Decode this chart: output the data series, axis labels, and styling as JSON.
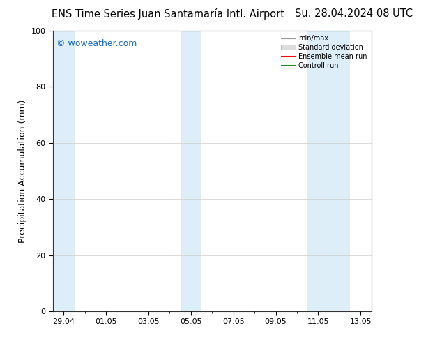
{
  "title_left": "ENS Time Series Juan Santamaría Intl. Airport",
  "title_right": "Su. 28.04.2024 08 UTC",
  "ylabel": "Precipitation Accumulation (mm)",
  "watermark": "© woweather.com",
  "ylim": [
    0,
    100
  ],
  "yticks": [
    0,
    20,
    40,
    60,
    80,
    100
  ],
  "xtick_labels": [
    "29.04",
    "01.05",
    "03.05",
    "05.05",
    "07.05",
    "09.05",
    "11.05",
    "13.05"
  ],
  "xtick_positions": [
    0,
    2,
    4,
    6,
    8,
    10,
    12,
    14
  ],
  "x_min": -0.5,
  "x_max": 14.5,
  "shaded_bands": [
    {
      "x_start": -0.5,
      "x_end": 0.5,
      "color": "#ddeef8"
    },
    {
      "x_start": 5.5,
      "x_end": 6.5,
      "color": "#ddeef8"
    },
    {
      "x_start": 11.5,
      "x_end": 13.5,
      "color": "#ddeef8"
    }
  ],
  "legend_labels": [
    "min/max",
    "Standard deviation",
    "Ensemble mean run",
    "Controll run"
  ],
  "legend_line_colors": [
    "#aaaaaa",
    "#cccccc",
    "#ff0000",
    "#228b22"
  ],
  "background_color": "#ffffff",
  "plot_bg_color": "#ffffff",
  "grid_color": "#cccccc",
  "title_fontsize": 10.5,
  "axis_fontsize": 9,
  "tick_fontsize": 8,
  "watermark_color": "#1a6abf",
  "watermark_fontsize": 9
}
